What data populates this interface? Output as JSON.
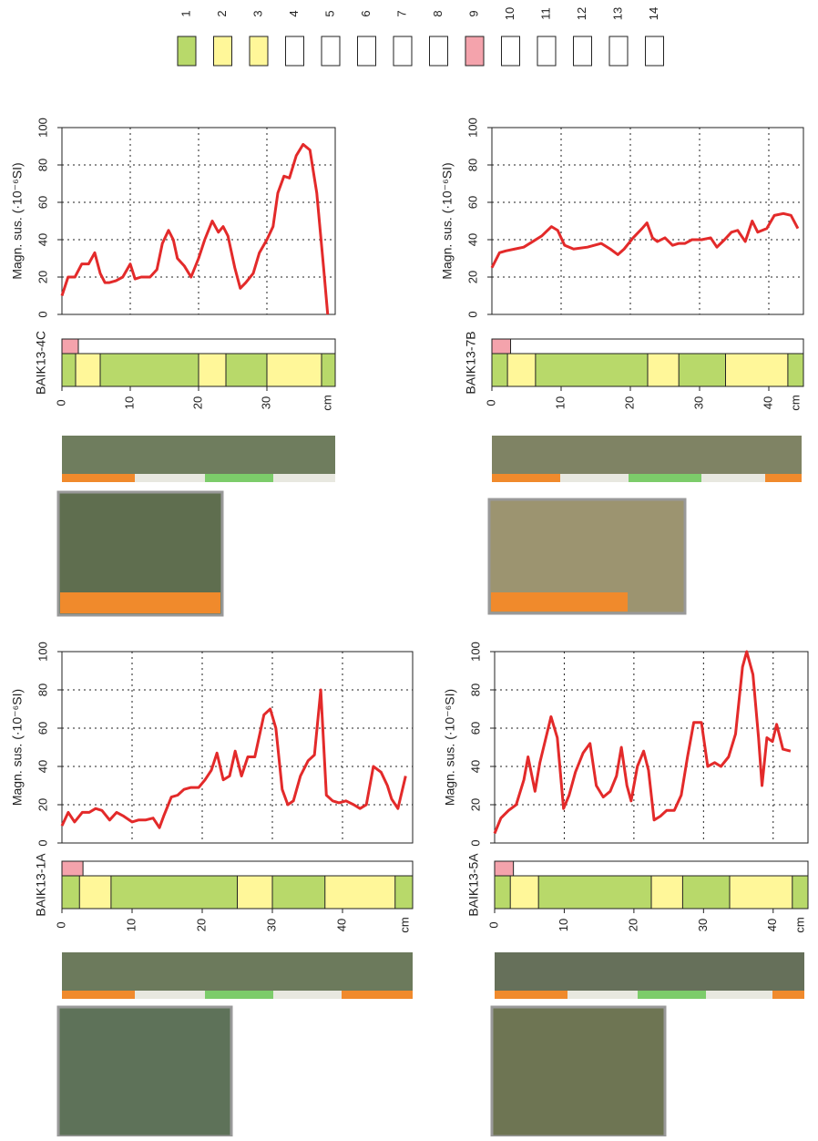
{
  "legend": {
    "labels": [
      "1",
      "2",
      "3",
      "4",
      "5",
      "6",
      "7",
      "8",
      "9",
      "10",
      "11",
      "12",
      "13",
      "14"
    ],
    "colors": [
      "#b8d96a",
      "#fff799",
      "#fff799",
      "#ffffff",
      "#ffffff",
      "#ffffff",
      "#ffffff",
      "#ffffff",
      "#f4a3ac",
      "#ffffff",
      "#ffffff",
      "#ffffff",
      "#ffffff",
      "#ffffff"
    ]
  },
  "chart_data": [
    {
      "type": "line",
      "title": "BAIK13-4C",
      "y_label": "Magn. sus. (·10⁻⁶SI)",
      "x_unit": "cm",
      "xlim": [
        0,
        40
      ],
      "xticks": [
        0,
        10,
        20,
        30
      ],
      "ylim": [
        0,
        100
      ],
      "yticks": [
        0,
        20,
        40,
        60,
        80,
        100
      ],
      "grid": true,
      "x": [
        0,
        0.9,
        1.9,
        2.9,
        3.9,
        4.8,
        5.6,
        6.3,
        6.9,
        7.9,
        8.9,
        10,
        10.7,
        11.6,
        12.9,
        13.9,
        14.7,
        15.6,
        16.3,
        16.9,
        17.9,
        18.9,
        20,
        20.9,
        22,
        22.9,
        23.6,
        24.3,
        25.3,
        26.1,
        26.9,
        28,
        28.9,
        30,
        30.9,
        31.6,
        32.5,
        33.3,
        34.3,
        35.3,
        36.3,
        37.3,
        38.3,
        38.9
      ],
      "series": [
        {
          "color": "#e32a2a",
          "values": [
            10,
            20,
            20,
            27,
            27,
            33,
            22,
            17,
            17,
            18,
            20,
            27,
            19,
            20,
            20,
            24,
            38,
            45,
            40,
            30,
            26,
            20,
            30,
            40,
            50,
            44,
            47,
            42,
            25,
            14,
            17,
            22,
            33,
            40,
            47,
            65,
            74,
            73,
            85,
            91,
            88,
            65,
            25,
            0
          ]
        }
      ]
    },
    {
      "type": "line",
      "title": "BAIK13-7B",
      "y_label": "Magn. sus. (·10⁻⁶SI)",
      "x_unit": "cm",
      "xlim": [
        0,
        45
      ],
      "xticks": [
        0,
        10,
        20,
        30,
        40
      ],
      "ylim": [
        0,
        100
      ],
      "yticks": [
        0,
        20,
        40,
        60,
        80,
        100
      ],
      "grid": true,
      "x": [
        0,
        1.1,
        2,
        3.3,
        4.6,
        5.9,
        7.2,
        8.6,
        9.5,
        10.5,
        11.8,
        13.8,
        15.8,
        17.1,
        18.2,
        19.1,
        20.4,
        21.7,
        22.4,
        23.2,
        23.9,
        25,
        26.1,
        27,
        27.9,
        28.9,
        30.3,
        31.6,
        32.5,
        33.6,
        34.6,
        35.5,
        36.6,
        37.6,
        38.4,
        39.7,
        40.8,
        42.1,
        43.2,
        44.2
      ],
      "series": [
        {
          "color": "#e32a2a",
          "values": [
            25,
            33,
            34,
            35,
            36,
            39,
            42,
            47,
            45,
            37,
            35,
            36,
            38,
            35,
            32,
            35,
            41,
            46,
            49,
            41,
            39,
            41,
            37,
            38,
            38,
            40,
            40,
            41,
            36,
            40,
            44,
            45,
            39,
            50,
            44,
            46,
            53,
            54,
            53,
            46
          ]
        }
      ]
    },
    {
      "type": "line",
      "title": "BAIK13-1A",
      "y_label": "Magn. sus. (·10⁻⁶SI)",
      "x_unit": "cm",
      "xlim": [
        0,
        50
      ],
      "xticks": [
        0,
        10,
        20,
        30,
        40
      ],
      "ylim": [
        0,
        100
      ],
      "yticks": [
        0,
        20,
        40,
        60,
        80,
        100
      ],
      "grid": true,
      "x": [
        0,
        0.9,
        1.8,
        2.9,
        3.9,
        4.8,
        5.7,
        6.8,
        7.8,
        8.8,
        10,
        10.9,
        11.9,
        13,
        13.9,
        14.5,
        15.6,
        16.5,
        17.4,
        18.4,
        19.5,
        20.4,
        21.3,
        22.1,
        23,
        23.9,
        24.7,
        25.6,
        26.5,
        27.5,
        28.8,
        29.7,
        30.5,
        31.4,
        32.2,
        33,
        34,
        35.1,
        36,
        36.9,
        37.7,
        38.6,
        39.5,
        40.5,
        41.6,
        42.5,
        43.4,
        44.4,
        45.5,
        46.4,
        47,
        47.9,
        49
      ],
      "series": [
        {
          "color": "#e32a2a",
          "values": [
            9,
            16,
            11,
            16,
            16,
            18,
            17,
            12,
            16,
            14,
            11,
            12,
            12,
            13,
            8,
            14,
            24,
            25,
            28,
            29,
            29,
            33,
            38,
            47,
            33,
            35,
            48,
            35,
            45,
            45,
            67,
            70,
            60,
            28,
            20,
            22,
            35,
            43,
            46,
            80,
            25,
            22,
            21,
            22,
            20,
            18,
            20,
            40,
            37,
            30,
            23,
            18,
            35
          ]
        }
      ]
    },
    {
      "type": "line",
      "title": "BAIK13-5A",
      "y_label": "Magn. sus. (·10⁻⁶SI)",
      "x_unit": "cm",
      "xlim": [
        0,
        45
      ],
      "xticks": [
        0,
        10,
        20,
        30,
        40
      ],
      "ylim": [
        0,
        100
      ],
      "yticks": [
        0,
        20,
        40,
        60,
        80,
        100
      ],
      "grid": true,
      "x": [
        0,
        0.9,
        2,
        3.1,
        4.2,
        4.8,
        5.8,
        6.5,
        7.5,
        8.1,
        9,
        9.9,
        10.7,
        11.6,
        12.7,
        13.7,
        14.6,
        15.6,
        16.6,
        17.5,
        18.2,
        19,
        19.6,
        20.5,
        21.4,
        22.1,
        22.9,
        23.8,
        24.7,
        25.8,
        26.8,
        27.7,
        28.6,
        29.7,
        30.6,
        31.6,
        32.5,
        33.6,
        34.6,
        35.6,
        36.2,
        37.1,
        37.9,
        38.4,
        39.1,
        39.9,
        40.5,
        41.4,
        42.5
      ],
      "series": [
        {
          "color": "#e32a2a",
          "values": [
            5,
            13,
            17,
            20,
            33,
            45,
            27,
            42,
            57,
            66,
            55,
            18,
            25,
            37,
            47,
            52,
            30,
            24,
            27,
            35,
            50,
            30,
            22,
            40,
            48,
            38,
            12,
            14,
            17,
            17,
            25,
            45,
            63,
            63,
            40,
            42,
            40,
            45,
            57,
            92,
            100,
            88,
            55,
            30,
            55,
            53,
            62,
            49,
            48
          ]
        }
      ]
    }
  ]
}
